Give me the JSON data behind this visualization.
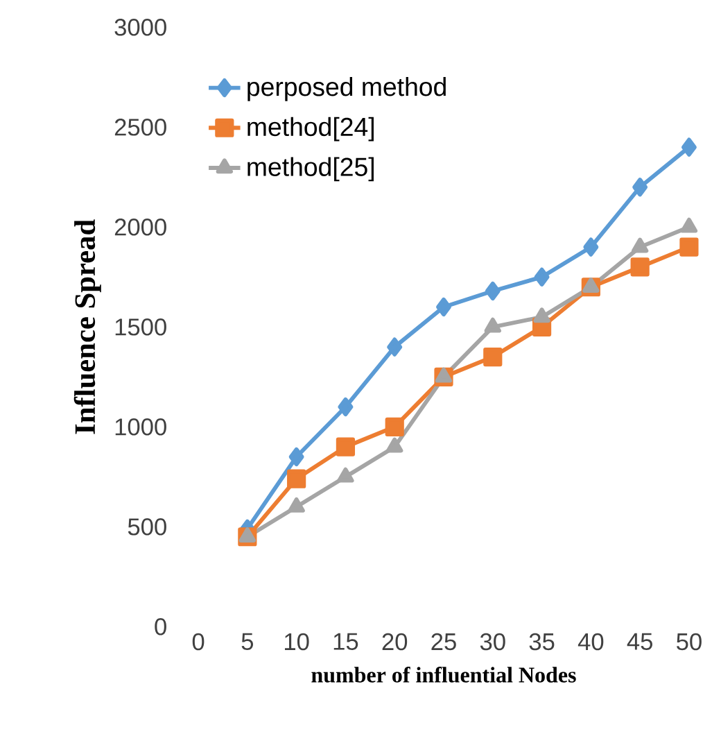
{
  "chart_data": {
    "type": "line",
    "xlabel": "number of influential Nodes",
    "ylabel": "Influence Spread",
    "categories": [
      "0",
      "5",
      "10",
      "15",
      "20",
      "25",
      "30",
      "35",
      "40",
      "45",
      "50"
    ],
    "series": [
      {
        "name": "perposed method",
        "color": "#5b9bd5",
        "marker": "diamond",
        "values": [
          null,
          490,
          850,
          1100,
          1400,
          1600,
          1680,
          1750,
          1900,
          2200,
          2400
        ]
      },
      {
        "name": "method[24]",
        "color": "#ed7d31",
        "marker": "square",
        "values": [
          null,
          450,
          740,
          900,
          1000,
          1250,
          1350,
          1500,
          1700,
          1800,
          1900
        ]
      },
      {
        "name": "method[25]",
        "color": "#a5a5a5",
        "marker": "triangle",
        "values": [
          null,
          450,
          600,
          750,
          900,
          1250,
          1500,
          1550,
          1700,
          1900,
          2000
        ]
      }
    ],
    "ylim": [
      0,
      3000
    ],
    "yticks": [
      0,
      500,
      1000,
      1500,
      2000,
      2500,
      3000
    ],
    "grid": false,
    "legend": "top left"
  }
}
